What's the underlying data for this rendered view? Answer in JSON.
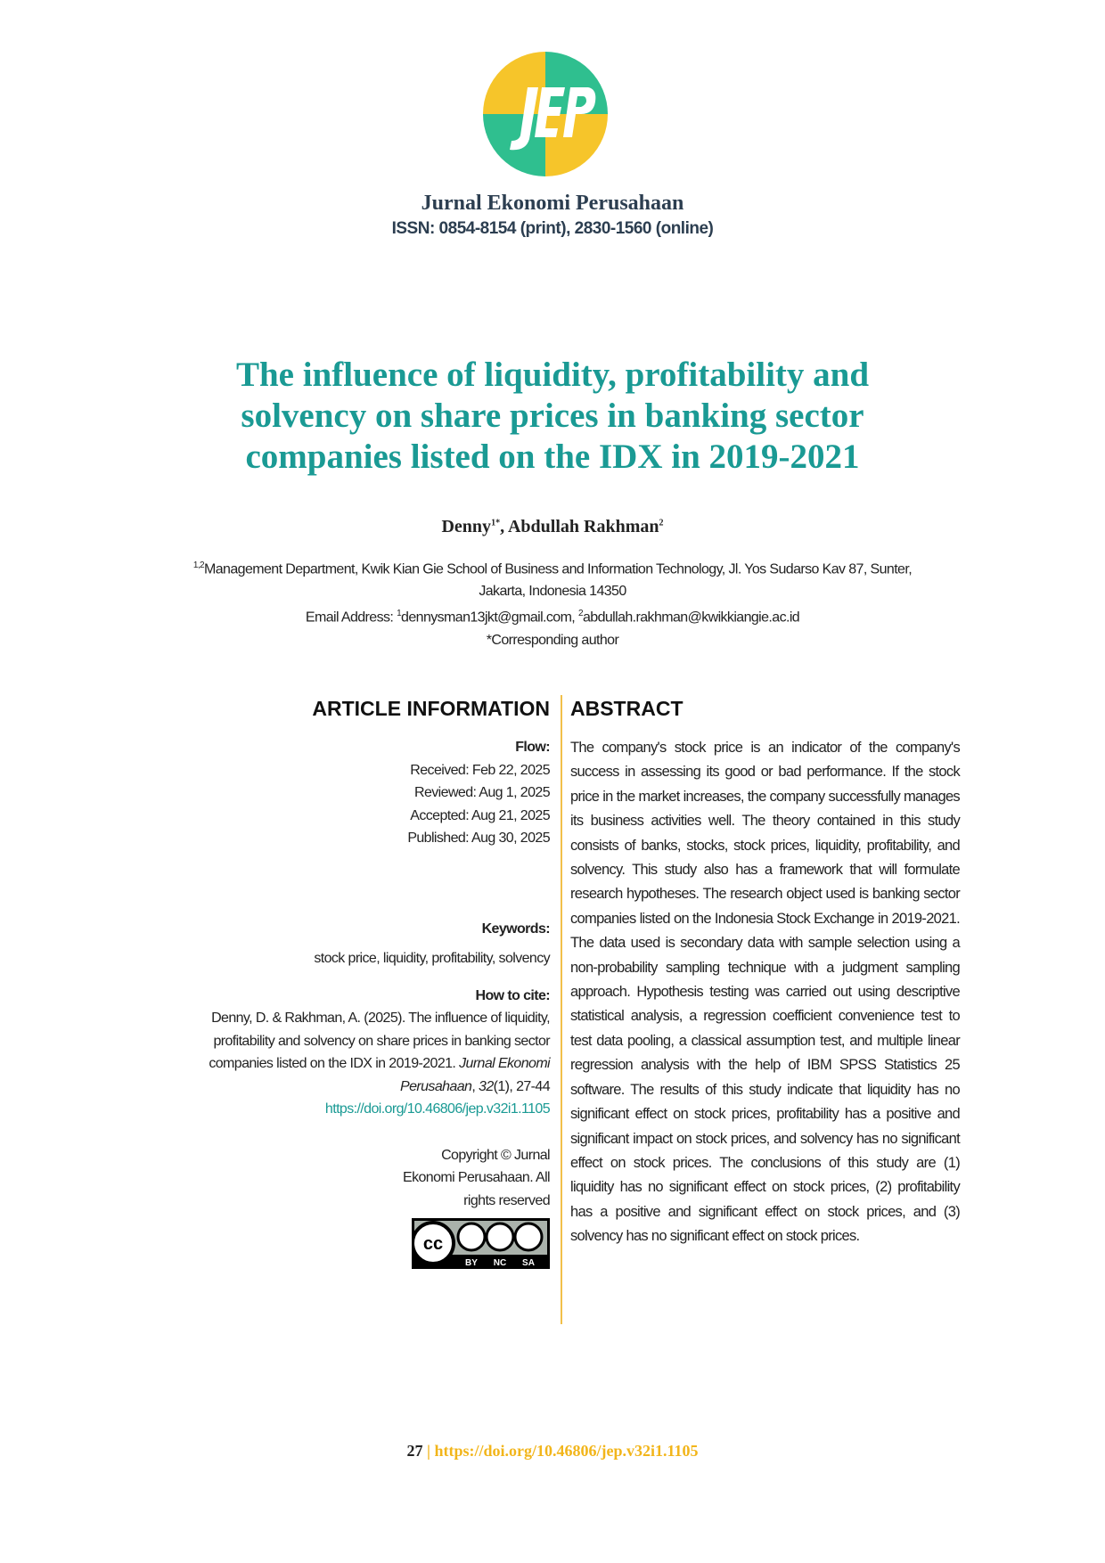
{
  "header": {
    "journal": "Jurnal Ekonomi Perusahaan",
    "issn": "ISSN: 0854-8154 (print), 2830-1560 (online)"
  },
  "title": "The influence of liquidity, profitability and solvency on share prices in banking sector companies listed on the IDX in 2019-2021",
  "authors": [
    {
      "name": "Denny",
      "sup": "1*"
    },
    {
      "name": "Abdullah Rakhman",
      "sup": "2"
    }
  ],
  "author_separator": ", ",
  "affiliation": {
    "sup": "1,2",
    "text": "Management Department, Kwik Kian Gie School of Business and Information Technology, Jl. Yos Sudarso Kav 87, Sunter, Jakarta, Indonesia 14350"
  },
  "email": {
    "label": "Email Address: ",
    "sup1": "1",
    "email1": "dennysman13jkt@gmail.com, ",
    "sup2": "2",
    "email2": "abdullah.rakhman@kwikkiangie.ac.id"
  },
  "corresponding": "*Corresponding author",
  "article_information": {
    "heading": "ARTICLE INFORMATION",
    "flow_label": "Flow:",
    "flow": [
      "Received: Feb 22, 2025",
      "Reviewed: Aug 1, 2025",
      "Accepted: Aug 21, 2025",
      "Published: Aug 30, 2025"
    ],
    "keywords_label": "Keywords:",
    "keywords": "stock price, liquidity, profitability, solvency",
    "cite_label": "How to cite:",
    "cite": {
      "text": "Denny, D. & Rakhman, A. (2025). The influence of liquidity, profitability and solvency on share prices in banking sector companies listed on the IDX in 2019-2021. ",
      "journal": "Jurnal Ekonomi Perusahaan",
      "sep": ", ",
      "volume": "32",
      "rest": "(1), 27-44",
      "doi": "https://doi.org/10.46806/jep.v32i1.1105"
    },
    "copyright": "Copyright © Jurnal Ekonomi Perusahaan. All rights reserved",
    "license_badge": [
      "BY",
      "NC",
      "SA"
    ]
  },
  "abstract": {
    "heading": "ABSTRACT",
    "text": "The company's stock price is an indicator of the company's success in assessing its good or bad performance. If the stock price in the market increases, the company successfully manages its business activities well. The theory contained in this study consists of banks, stocks, stock prices, liquidity, profitability, and solvency. This study also has a framework that will formulate research hypotheses. The research object used is banking sector companies listed on the Indonesia Stock Exchange in 2019-2021. The data used is secondary data with sample selection using a non-probability sampling technique with a judgment sampling approach. Hypothesis testing was carried out using descriptive statistical analysis, a regression coefficient convenience test to test data pooling, a classical assumption test, and multiple linear regression analysis with the help of IBM SPSS Statistics 25 software. The results of this study indicate that liquidity has no significant effect on stock prices, profitability has a positive and significant impact on stock prices, and solvency has no significant effect on stock prices. The conclusions of this study are (1) liquidity has no significant effect on stock prices, (2) profitability has a positive and significant effect on stock prices, and (3) solvency has no significant effect on stock prices."
  },
  "footer": {
    "page": "27",
    "separator": "|",
    "doi": "https://doi.org/10.46806/jep.v32i1.1105"
  }
}
